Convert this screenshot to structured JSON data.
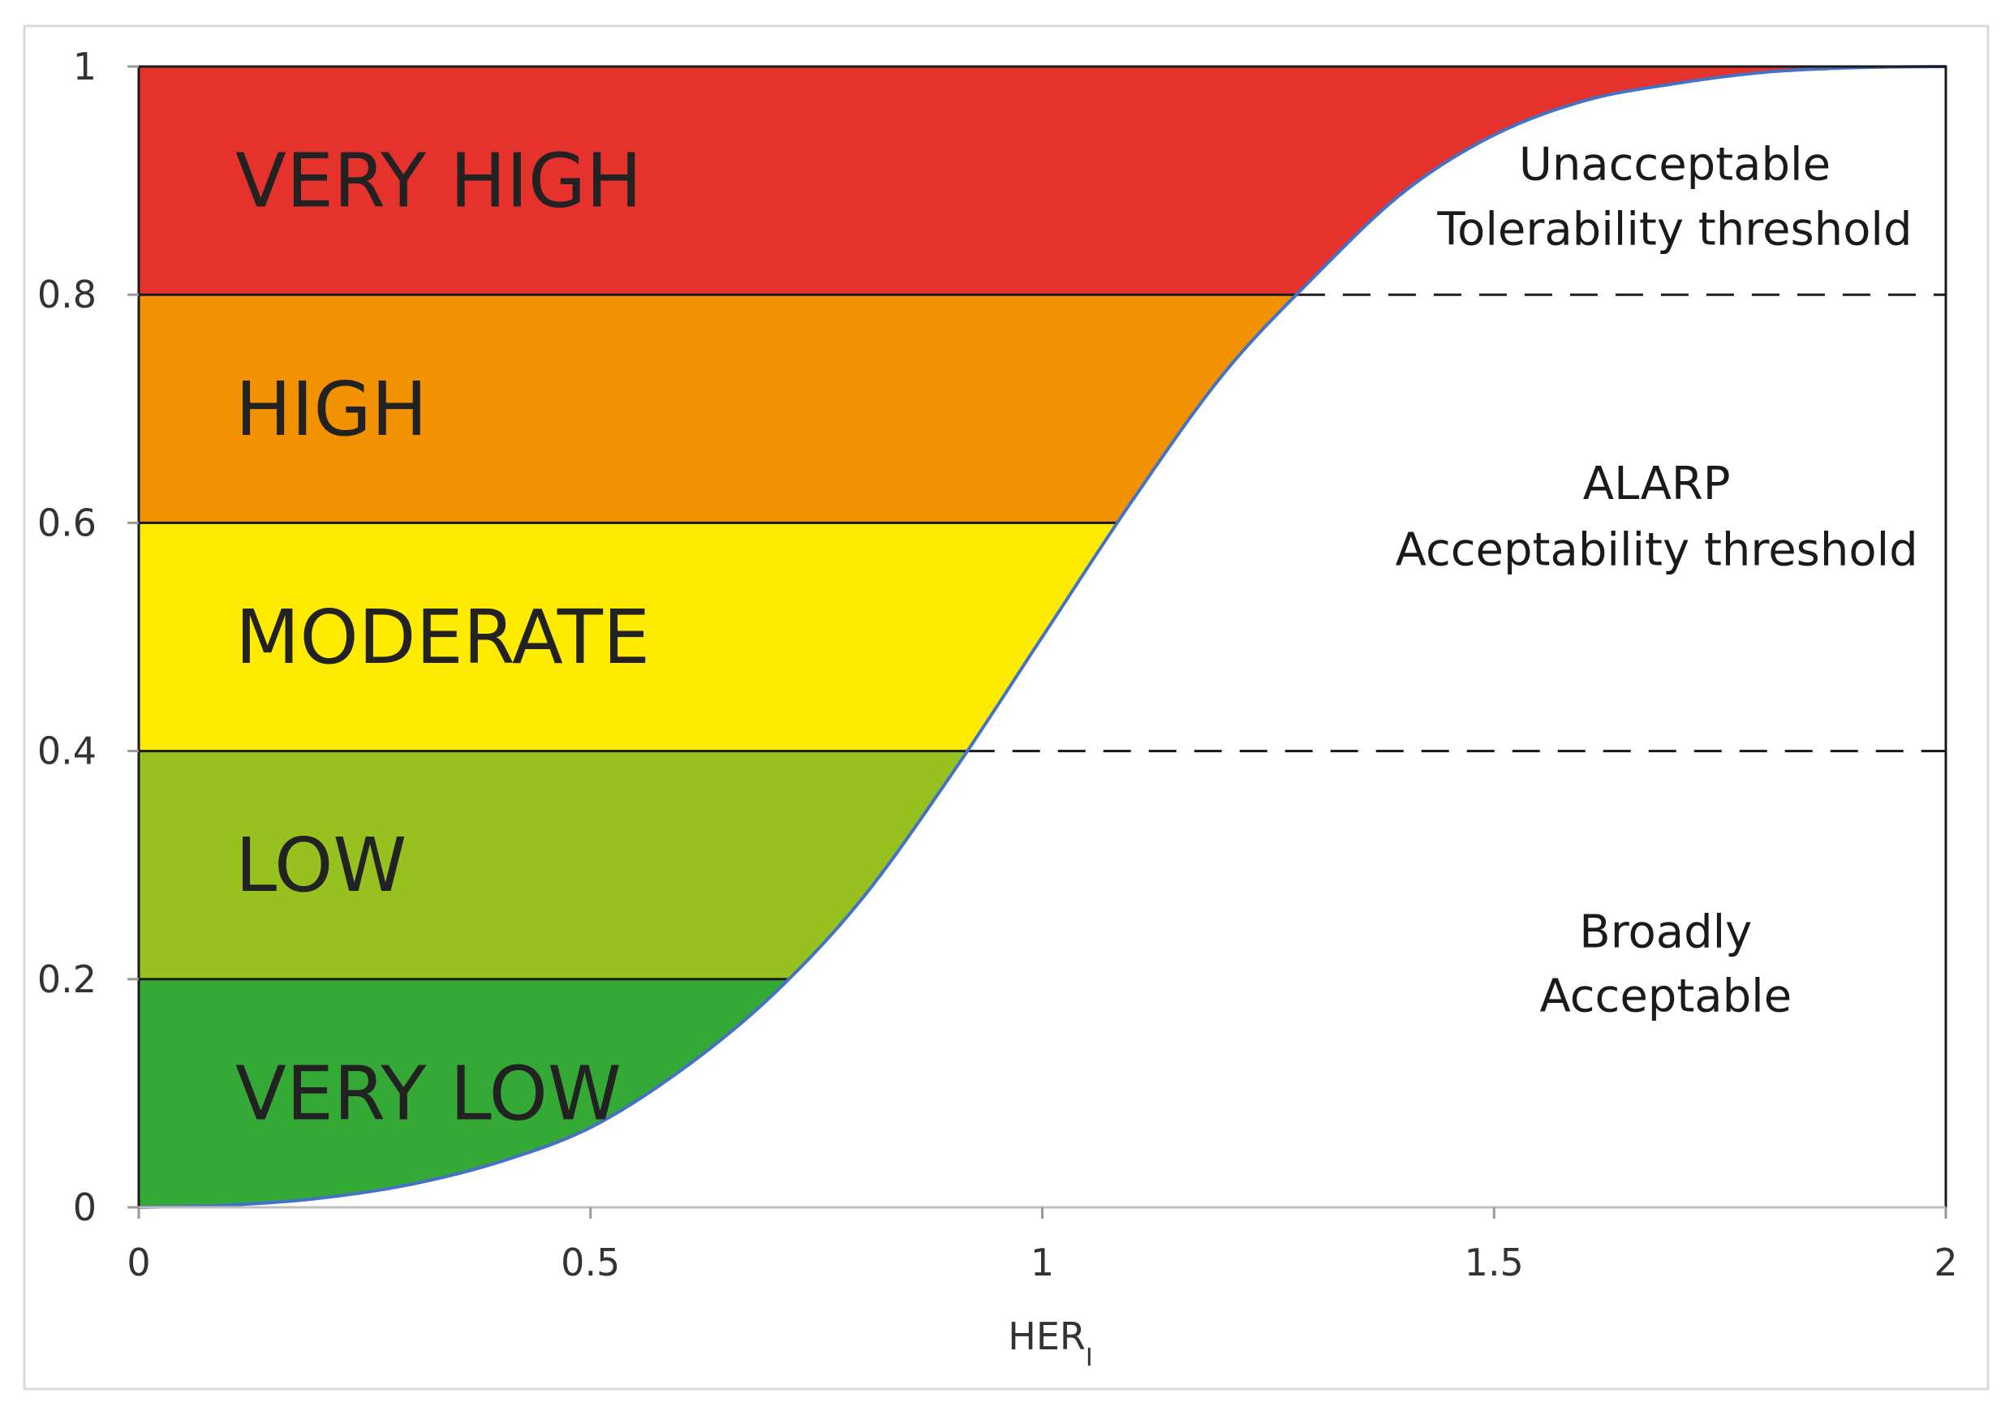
{
  "chart_data": {
    "type": "area",
    "xlabel": "HER",
    "xlabel_subscript": "I",
    "ylabel": "",
    "xlim": [
      0,
      2
    ],
    "ylim": [
      0,
      1
    ],
    "x_ticks": [
      {
        "value": 0,
        "label": "0"
      },
      {
        "value": 0.5,
        "label": "0.5"
      },
      {
        "value": 1,
        "label": "1"
      },
      {
        "value": 1.5,
        "label": "1.5"
      },
      {
        "value": 2,
        "label": "2"
      }
    ],
    "y_ticks": [
      {
        "value": 0,
        "label": "0"
      },
      {
        "value": 0.2,
        "label": "0.2"
      },
      {
        "value": 0.4,
        "label": "0.4"
      },
      {
        "value": 0.6,
        "label": "0.6"
      },
      {
        "value": 0.8,
        "label": "0.8"
      },
      {
        "value": 1,
        "label": "1"
      }
    ],
    "bands": [
      {
        "name": "VERY LOW",
        "from": 0,
        "to": 0.2,
        "color": "#35a935"
      },
      {
        "name": "LOW",
        "from": 0.2,
        "to": 0.4,
        "color": "#96c11e"
      },
      {
        "name": "MODERATE",
        "from": 0.4,
        "to": 0.6,
        "color": "#ffeb00"
      },
      {
        "name": "HIGH",
        "from": 0.6,
        "to": 0.8,
        "color": "#f29200"
      },
      {
        "name": "VERY HIGH",
        "from": 0.8,
        "to": 1,
        "color": "#e6322d"
      }
    ],
    "curve": {
      "color": "#4472c4",
      "points": [
        [
          0,
          0
        ],
        [
          0.1,
          0.002
        ],
        [
          0.2,
          0.008
        ],
        [
          0.3,
          0.02
        ],
        [
          0.4,
          0.04
        ],
        [
          0.5,
          0.07
        ],
        [
          0.6,
          0.12
        ],
        [
          0.7,
          0.185
        ],
        [
          0.8,
          0.27
        ],
        [
          0.9,
          0.38
        ],
        [
          1.0,
          0.5
        ],
        [
          1.1,
          0.62
        ],
        [
          1.2,
          0.73
        ],
        [
          1.3,
          0.815
        ],
        [
          1.4,
          0.89
        ],
        [
          1.5,
          0.94
        ],
        [
          1.6,
          0.97
        ],
        [
          1.7,
          0.985
        ],
        [
          1.8,
          0.995
        ],
        [
          1.9,
          0.999
        ],
        [
          2.0,
          1.0
        ]
      ]
    },
    "thresholds": [
      {
        "y": 0.8,
        "style": "dashed"
      },
      {
        "y": 0.4,
        "style": "dashed"
      }
    ],
    "zones": [
      {
        "lines": [
          "Unacceptable",
          "Tolerability threshold"
        ],
        "x": 1.7,
        "y": [
          0.915,
          0.858
        ]
      },
      {
        "lines": [
          "ALARP",
          "Acceptability threshold"
        ],
        "x": 1.68,
        "y": [
          0.635,
          0.577
        ]
      },
      {
        "lines": [
          "Broadly",
          "Acceptable"
        ],
        "x": 1.69,
        "y": [
          0.242,
          0.186
        ]
      }
    ],
    "grid": false,
    "legend": "none"
  }
}
